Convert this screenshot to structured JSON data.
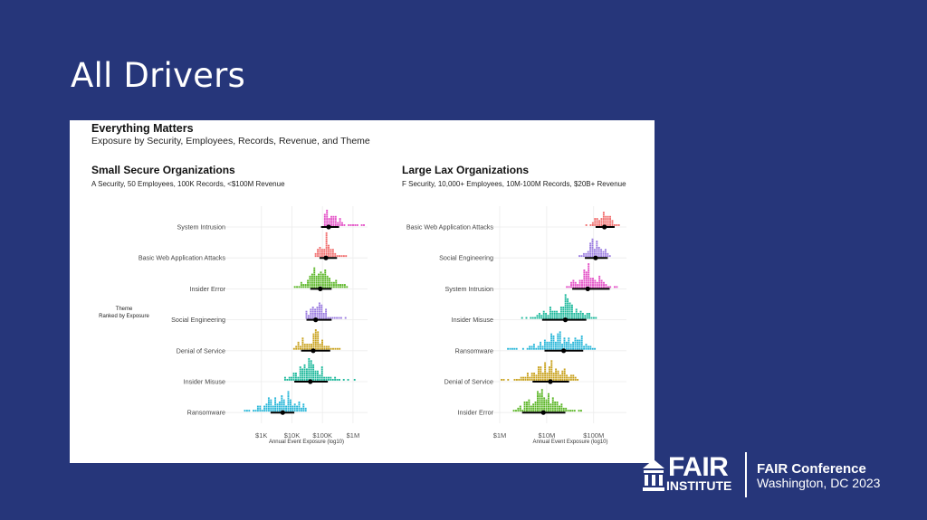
{
  "slide": {
    "title": "All Drivers"
  },
  "figure": {
    "title": "Everything Matters",
    "subtitle": "Exposure by Security, Employees, Records, Revenue, and Theme",
    "legend_title": "Theme",
    "legend_sub": "Ranked by Exposure"
  },
  "chart_data": [
    {
      "type": "scatter",
      "title": "Small Secure Organizations",
      "subtitle": "A Security, 50 Employees, 100K Records, <$100M Revenue",
      "xlabel": "Annual Event Exposure (log10)",
      "x_scale": "log10",
      "x_ticks": [
        "$1K",
        "$10K",
        "$100K",
        "$1M"
      ],
      "x_tick_values": [
        1000,
        10000,
        100000,
        1000000
      ],
      "xlim": [
        100,
        3000000
      ],
      "categories": [
        "System Intrusion",
        "Basic Web Application Attacks",
        "Insider Error",
        "Social Engineering",
        "Denial of Service",
        "Insider Misuse",
        "Ransomware"
      ],
      "series": [
        {
          "name": "System Intrusion",
          "color": "#e34fc6",
          "range": [
            120000,
            2500000
          ],
          "median": 160000,
          "interval": [
            90000,
            350000
          ]
        },
        {
          "name": "Basic Web Application Attacks",
          "color": "#f06b6b",
          "range": [
            60000,
            600000
          ],
          "median": 130000,
          "interval": [
            80000,
            300000
          ]
        },
        {
          "name": "Insider Error",
          "color": "#59b524",
          "range": [
            9000,
            1000000
          ],
          "median": 85000,
          "interval": [
            40000,
            200000
          ]
        },
        {
          "name": "Social Engineering",
          "color": "#9a7be0",
          "range": [
            30000,
            600000
          ],
          "median": 60000,
          "interval": [
            30000,
            200000
          ]
        },
        {
          "name": "Denial of Service",
          "color": "#c9a21e",
          "range": [
            10000,
            400000
          ],
          "median": 50000,
          "interval": [
            20000,
            180000
          ]
        },
        {
          "name": "Insider Misuse",
          "color": "#1cb89b",
          "range": [
            6000,
            1200000
          ],
          "median": 40000,
          "interval": [
            12000,
            150000
          ]
        },
        {
          "name": "Ransomware",
          "color": "#27b6d8",
          "range": [
            150,
            30000
          ],
          "median": 5000,
          "interval": [
            2000,
            12000
          ]
        }
      ]
    },
    {
      "type": "scatter",
      "title": "Large Lax Organizations",
      "subtitle": "F Security, 10,000+ Employees, 10M-100M Records, $20B+ Revenue",
      "xlabel": "Annual Event Exposure (log10)",
      "x_scale": "log10",
      "x_ticks": [
        "$1M",
        "$10M",
        "$100M"
      ],
      "x_tick_values": [
        1000000,
        10000000,
        100000000
      ],
      "xlim": [
        1000000,
        500000000
      ],
      "categories": [
        "Basic Web Application Attacks",
        "Social Engineering",
        "System Intrusion",
        "Insider Misuse",
        "Ransomware",
        "Denial of Service",
        "Insider Error"
      ],
      "series": [
        {
          "name": "Basic Web Application Attacks",
          "color": "#f06b6b",
          "range": [
            70000000,
            350000000
          ],
          "median": 170000000,
          "interval": [
            110000000,
            280000000
          ]
        },
        {
          "name": "Social Engineering",
          "color": "#9a7be0",
          "range": [
            45000000,
            270000000
          ],
          "median": 110000000,
          "interval": [
            65000000,
            200000000
          ]
        },
        {
          "name": "System Intrusion",
          "color": "#e34fc6",
          "range": [
            27000000,
            320000000
          ],
          "median": 75000000,
          "interval": [
            35000000,
            220000000
          ]
        },
        {
          "name": "Insider Misuse",
          "color": "#1cb89b",
          "range": [
            3000000,
            120000000
          ],
          "median": 25000000,
          "interval": [
            8000000,
            70000000
          ]
        },
        {
          "name": "Ransomware",
          "color": "#27b6d8",
          "range": [
            1500000,
            110000000
          ],
          "median": 23000000,
          "interval": [
            9000000,
            60000000
          ]
        },
        {
          "name": "Denial of Service",
          "color": "#c9a21e",
          "range": [
            1100000,
            50000000
          ],
          "median": 12000000,
          "interval": [
            5000000,
            30000000
          ]
        },
        {
          "name": "Insider Error",
          "color": "#59b524",
          "range": [
            2000000,
            60000000
          ],
          "median": 8500000,
          "interval": [
            3000000,
            25000000
          ]
        }
      ]
    }
  ],
  "branding": {
    "logo_line1": "FAIR",
    "logo_line2": "INSTITUTE",
    "conference": "FAIR Conference",
    "location": "Washington, DC 2023"
  }
}
